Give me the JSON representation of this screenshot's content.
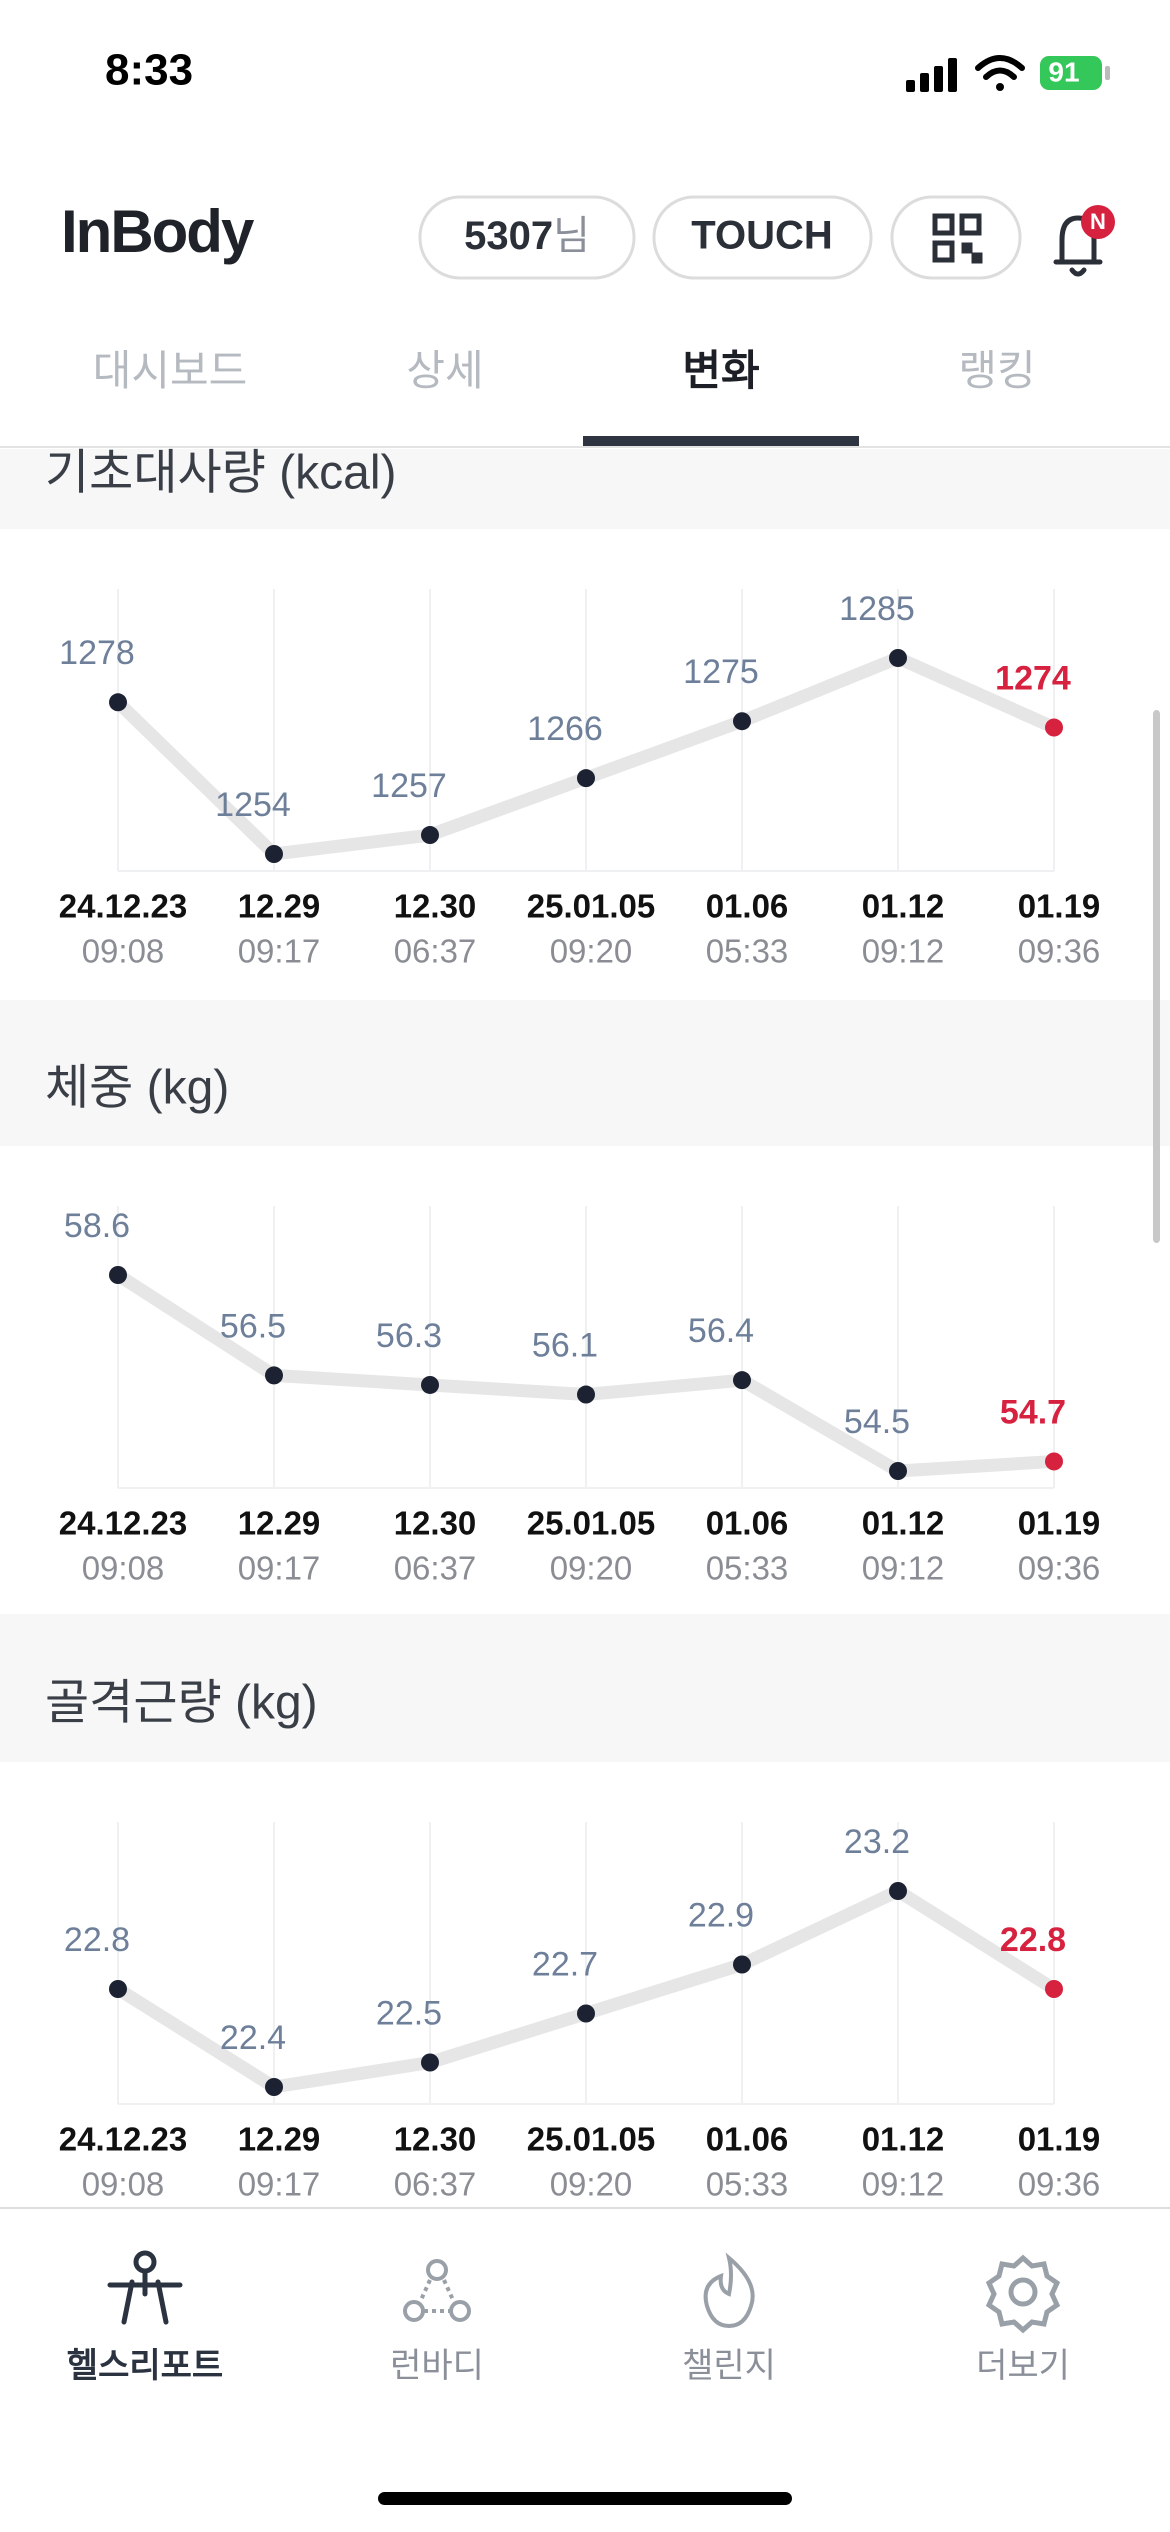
{
  "status_bar": {
    "time": "8:33",
    "battery": "91"
  },
  "header": {
    "logo": "InBody",
    "user_id": "5307",
    "honorific": "님",
    "touch": "TOUCH",
    "badge": "N"
  },
  "tabs": [
    {
      "label": "대시보드",
      "active": false
    },
    {
      "label": "상세",
      "active": false
    },
    {
      "label": "변화",
      "active": true
    },
    {
      "label": "랭킹",
      "active": false
    }
  ],
  "chart_data": [
    {
      "type": "line",
      "title": "기초대사량 (kcal)",
      "categories": [
        "24.12.23",
        "12.29",
        "12.30",
        "25.01.05",
        "01.06",
        "01.12",
        "01.19"
      ],
      "times": [
        "09:08",
        "09:17",
        "06:37",
        "09:20",
        "05:33",
        "09:12",
        "09:36"
      ],
      "values": [
        1278,
        1254,
        1257,
        1266,
        1275,
        1285,
        1274
      ],
      "color": "#1d2233",
      "line_color": "#e6e6e6",
      "highlight_color": "#d6213f"
    },
    {
      "type": "line",
      "title": "체중 (kg)",
      "categories": [
        "24.12.23",
        "12.29",
        "12.30",
        "25.01.05",
        "01.06",
        "01.12",
        "01.19"
      ],
      "times": [
        "09:08",
        "09:17",
        "06:37",
        "09:20",
        "05:33",
        "09:12",
        "09:36"
      ],
      "values": [
        58.6,
        56.5,
        56.3,
        56.1,
        56.4,
        54.5,
        54.7
      ],
      "color": "#1d2233",
      "line_color": "#e6e6e6",
      "highlight_color": "#d6213f"
    },
    {
      "type": "line",
      "title": "골격근량 (kg)",
      "categories": [
        "24.12.23",
        "12.29",
        "12.30",
        "25.01.05",
        "01.06",
        "01.12",
        "01.19"
      ],
      "times": [
        "09:08",
        "09:17",
        "06:37",
        "09:20",
        "05:33",
        "09:12",
        "09:36"
      ],
      "values": [
        22.8,
        22.4,
        22.5,
        22.7,
        22.9,
        23.2,
        22.8
      ],
      "color": "#1d2233",
      "line_color": "#e6e6e6",
      "highlight_color": "#d6213f"
    }
  ],
  "bottom_nav": [
    {
      "label": "헬스리포트",
      "active": true
    },
    {
      "label": "런바디",
      "active": false
    },
    {
      "label": "챌린지",
      "active": false
    },
    {
      "label": "더보기",
      "active": false
    }
  ]
}
